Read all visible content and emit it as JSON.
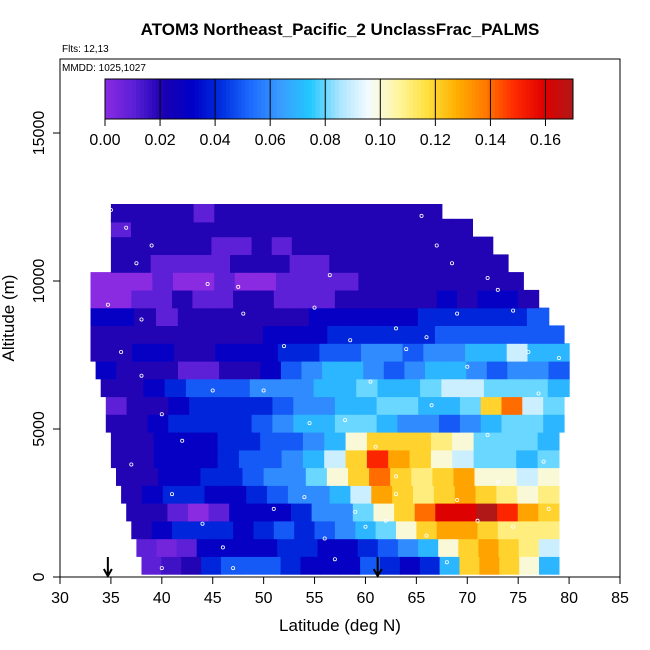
{
  "chart_data": {
    "type": "heatmap",
    "title": "ATOM3 Northeast_Pacific_2 UnclassFrac_PALMS",
    "annotations": [
      "Flts: 12,13",
      "MMDD: 1025,1027"
    ],
    "xlabel": "Latitude (deg N)",
    "ylabel": "Altitude (m)",
    "xlim": [
      30,
      85
    ],
    "ylim": [
      0,
      17500
    ],
    "x_ticks": [
      30,
      35,
      40,
      45,
      50,
      55,
      60,
      65,
      70,
      75,
      80,
      85
    ],
    "y_ticks": [
      0,
      5000,
      10000,
      15000
    ],
    "colorbar": {
      "range": [
        0,
        0.17
      ],
      "ticks": [
        "0.00",
        "0.02",
        "0.04",
        "0.06",
        "0.08",
        "0.10",
        "0.12",
        "0.14",
        "0.16"
      ],
      "colors": [
        "#8a2be2",
        "#5a1fd6",
        "#1a00b0",
        "#0000c8",
        "#0030e0",
        "#1e6cff",
        "#3a9cff",
        "#22c8ff",
        "#a8e4ff",
        "#f4fbff",
        "#fff6a0",
        "#ffe040",
        "#ffb000",
        "#ff7a00",
        "#ff2a00",
        "#e00000",
        "#b01818"
      ]
    },
    "arrows_lat": [
      34.7,
      61.2
    ],
    "series": [
      {
        "values": [
          {
            "alt": 400,
            "lat_start": 38,
            "lat_end": 79,
            "values": [
              0.01,
              0.015,
              0.02,
              0.04,
              0.05,
              0.05,
              0.05,
              0.04,
              0.03,
              0.03,
              0.03,
              0.05,
              0.04,
              0.03,
              0.04,
              0.07,
              0.12,
              0.13,
              0.12,
              0.1,
              0.07
            ]
          },
          {
            "alt": 1000,
            "lat_start": 37.5,
            "lat_end": 79,
            "values": [
              0.01,
              0.005,
              0.01,
              0.03,
              0.03,
              0.03,
              0.03,
              0.04,
              0.04,
              0.03,
              0.03,
              0.04,
              0.05,
              0.06,
              0.07,
              0.1,
              0.12,
              0.13,
              0.12,
              0.11,
              0.09
            ]
          },
          {
            "alt": 1600,
            "lat_start": 37,
            "lat_end": 79,
            "values": [
              0.02,
              0.03,
              0.04,
              0.04,
              0.04,
              0.03,
              0.04,
              0.05,
              0.04,
              0.05,
              0.06,
              0.07,
              0.08,
              0.1,
              0.12,
              0.13,
              0.13,
              0.12,
              0.11,
              0.11,
              0.11
            ]
          },
          {
            "alt": 2200,
            "lat_start": 36.5,
            "lat_end": 79,
            "values": [
              0.02,
              0.02,
              0.01,
              0.0,
              0.01,
              0.03,
              0.03,
              0.03,
              0.04,
              0.06,
              0.06,
              0.08,
              0.1,
              0.12,
              0.14,
              0.16,
              0.16,
              0.17,
              0.15,
              0.13,
              0.12
            ]
          },
          {
            "alt": 2800,
            "lat_start": 36,
            "lat_end": 79,
            "values": [
              0.02,
              0.03,
              0.04,
              0.04,
              0.03,
              0.03,
              0.04,
              0.05,
              0.06,
              0.06,
              0.07,
              0.09,
              0.13,
              0.12,
              0.11,
              0.12,
              0.13,
              0.12,
              0.11,
              0.1,
              0.11
            ]
          },
          {
            "alt": 3400,
            "lat_start": 35.5,
            "lat_end": 79,
            "values": [
              0.02,
              0.02,
              0.03,
              0.03,
              0.04,
              0.04,
              0.05,
              0.06,
              0.06,
              0.08,
              0.1,
              0.12,
              0.14,
              0.12,
              0.11,
              0.12,
              0.13,
              0.1,
              0.1,
              0.09,
              0.1
            ]
          },
          {
            "alt": 4000,
            "lat_start": 35,
            "lat_end": 79,
            "values": [
              0.02,
              0.02,
              0.03,
              0.03,
              0.03,
              0.04,
              0.05,
              0.05,
              0.06,
              0.07,
              0.09,
              0.12,
              0.15,
              0.13,
              0.12,
              0.1,
              0.09,
              0.08,
              0.08,
              0.07,
              0.08
            ]
          },
          {
            "alt": 4600,
            "lat_start": 35,
            "lat_end": 79,
            "values": [
              0.02,
              0.02,
              0.03,
              0.03,
              0.03,
              0.04,
              0.04,
              0.05,
              0.05,
              0.06,
              0.07,
              0.1,
              0.12,
              0.12,
              0.12,
              0.11,
              0.1,
              0.08,
              0.08,
              0.08,
              0.07
            ]
          },
          {
            "alt": 5200,
            "lat_start": 34.5,
            "lat_end": 79.5,
            "values": [
              0.02,
              0.02,
              0.03,
              0.04,
              0.04,
              0.04,
              0.04,
              0.05,
              0.06,
              0.07,
              0.07,
              0.08,
              0.08,
              0.07,
              0.06,
              0.06,
              0.05,
              0.06,
              0.07,
              0.08,
              0.08,
              0.07
            ]
          },
          {
            "alt": 5800,
            "lat_start": 34.5,
            "lat_end": 79.5,
            "values": [
              0.01,
              0.02,
              0.02,
              0.03,
              0.04,
              0.04,
              0.04,
              0.04,
              0.05,
              0.06,
              0.06,
              0.07,
              0.07,
              0.08,
              0.08,
              0.07,
              0.07,
              0.08,
              0.12,
              0.14,
              0.09,
              0.08
            ]
          },
          {
            "alt": 6400,
            "lat_start": 34,
            "lat_end": 80,
            "values": [
              0.02,
              0.02,
              0.03,
              0.04,
              0.05,
              0.05,
              0.05,
              0.06,
              0.06,
              0.06,
              0.07,
              0.07,
              0.08,
              0.07,
              0.07,
              0.08,
              0.09,
              0.09,
              0.08,
              0.08,
              0.08,
              0.07
            ]
          },
          {
            "alt": 7000,
            "lat_start": 33.5,
            "lat_end": 80,
            "values": [
              0.03,
              0.02,
              0.02,
              0.02,
              0.01,
              0.01,
              0.02,
              0.02,
              0.03,
              0.05,
              0.06,
              0.07,
              0.07,
              0.06,
              0.05,
              0.06,
              0.07,
              0.07,
              0.06,
              0.05,
              0.06,
              0.06,
              0.05
            ]
          },
          {
            "alt": 7600,
            "lat_start": 33,
            "lat_end": 80,
            "values": [
              0.02,
              0.02,
              0.03,
              0.03,
              0.02,
              0.02,
              0.03,
              0.03,
              0.03,
              0.04,
              0.04,
              0.05,
              0.05,
              0.06,
              0.06,
              0.05,
              0.06,
              0.06,
              0.07,
              0.07,
              0.09,
              0.07,
              0.07
            ]
          },
          {
            "alt": 8200,
            "lat_start": 33,
            "lat_end": 79.5,
            "values": [
              0.02,
              0.02,
              0.02,
              0.02,
              0.02,
              0.02,
              0.02,
              0.02,
              0.03,
              0.03,
              0.03,
              0.04,
              0.04,
              0.04,
              0.04,
              0.04,
              0.05,
              0.05,
              0.05,
              0.05,
              0.05,
              0.05
            ]
          },
          {
            "alt": 8800,
            "lat_start": 33,
            "lat_end": 78,
            "values": [
              0.03,
              0.03,
              0.02,
              0.01,
              0.02,
              0.02,
              0.02,
              0.02,
              0.02,
              0.02,
              0.03,
              0.03,
              0.03,
              0.03,
              0.03,
              0.04,
              0.04,
              0.04,
              0.04,
              0.04,
              0.05
            ]
          },
          {
            "alt": 9400,
            "lat_start": 33,
            "lat_end": 77,
            "values": [
              0.0,
              0.0,
              0.01,
              0.01,
              0.02,
              0.01,
              0.01,
              0.02,
              0.02,
              0.01,
              0.01,
              0.01,
              0.02,
              0.02,
              0.02,
              0.02,
              0.02,
              0.03,
              0.02,
              0.03,
              0.03,
              0.02
            ]
          },
          {
            "alt": 10000,
            "lat_start": 33,
            "lat_end": 75.5,
            "values": [
              0.0,
              0.0,
              0.0,
              0.01,
              0.0,
              0.0,
              0.01,
              0.0,
              0.0,
              0.01,
              0.01,
              0.01,
              0.01,
              0.02,
              0.02,
              0.02,
              0.02,
              0.02,
              0.02,
              0.02,
              0.02
            ]
          },
          {
            "alt": 10600,
            "lat_start": 35,
            "lat_end": 74,
            "values": [
              0.02,
              0.02,
              0.01,
              0.01,
              0.01,
              0.01,
              0.02,
              0.02,
              0.02,
              0.01,
              0.01,
              0.02,
              0.02,
              0.02,
              0.02,
              0.02,
              0.02,
              0.02,
              0.02,
              0.02
            ]
          },
          {
            "alt": 11200,
            "lat_start": 35,
            "lat_end": 72.5,
            "values": [
              0.02,
              0.02,
              0.02,
              0.02,
              0.02,
              0.01,
              0.01,
              0.02,
              0.01,
              0.02,
              0.02,
              0.02,
              0.02,
              0.02,
              0.02,
              0.02,
              0.02,
              0.02,
              0.02
            ]
          },
          {
            "alt": 11800,
            "lat_start": 35,
            "lat_end": 70.5,
            "values": [
              0.01,
              0.02,
              0.02,
              0.02,
              0.02,
              0.02,
              0.02,
              0.02,
              0.02,
              0.02,
              0.02,
              0.02,
              0.02,
              0.02,
              0.02,
              0.02,
              0.02,
              0.02
            ]
          },
          {
            "alt": 12300,
            "lat_start": 35,
            "lat_end": 67.5,
            "values": [
              0.02,
              0.02,
              0.02,
              0.02,
              0.01,
              0.02,
              0.02,
              0.02,
              0.02,
              0.02,
              0.02,
              0.02,
              0.02,
              0.02,
              0.02,
              0.02
            ]
          }
        ]
      }
    ],
    "flight_track_points": [
      [
        35,
        12400
      ],
      [
        65.5,
        12200
      ],
      [
        44.5,
        9900
      ],
      [
        47.5,
        9800
      ],
      [
        58.5,
        8000
      ],
      [
        56.5,
        10200
      ],
      [
        34.7,
        9200
      ],
      [
        38,
        8700
      ],
      [
        36,
        7600
      ],
      [
        38,
        6800
      ],
      [
        40,
        5500
      ],
      [
        42,
        4600
      ],
      [
        37,
        3800
      ],
      [
        41,
        2800
      ],
      [
        44,
        1800
      ],
      [
        46,
        1000
      ],
      [
        56,
        1300
      ],
      [
        47,
        300
      ],
      [
        40,
        300
      ],
      [
        60.5,
        6600
      ],
      [
        61,
        4400
      ],
      [
        63,
        3400
      ],
      [
        59,
        2200
      ],
      [
        66,
        1400
      ],
      [
        69,
        2600
      ],
      [
        68,
        500
      ],
      [
        71,
        1900
      ],
      [
        72,
        4800
      ],
      [
        73,
        3200
      ],
      [
        74.5,
        1700
      ],
      [
        76,
        7600
      ],
      [
        77,
        6200
      ],
      [
        77.5,
        3900
      ],
      [
        78,
        2300
      ],
      [
        79,
        7400
      ],
      [
        66.5,
        5800
      ],
      [
        69,
        8900
      ],
      [
        70,
        7100
      ],
      [
        72,
        10100
      ],
      [
        73,
        9700
      ],
      [
        74.5,
        9000
      ],
      [
        55,
        9100
      ],
      [
        52,
        7800
      ],
      [
        50,
        6300
      ],
      [
        48,
        8900
      ],
      [
        45,
        6300
      ],
      [
        51,
        2300
      ],
      [
        54,
        2700
      ],
      [
        54.5,
        5200
      ],
      [
        58,
        5300
      ],
      [
        60,
        1700
      ],
      [
        62,
        1900
      ],
      [
        63,
        2800
      ],
      [
        57,
        600
      ],
      [
        39,
        11200
      ],
      [
        37.5,
        10600
      ],
      [
        36.5,
        11800
      ],
      [
        67,
        11200
      ],
      [
        68.5,
        10600
      ],
      [
        64,
        7700
      ],
      [
        63,
        8400
      ],
      [
        66,
        8100
      ]
    ]
  }
}
